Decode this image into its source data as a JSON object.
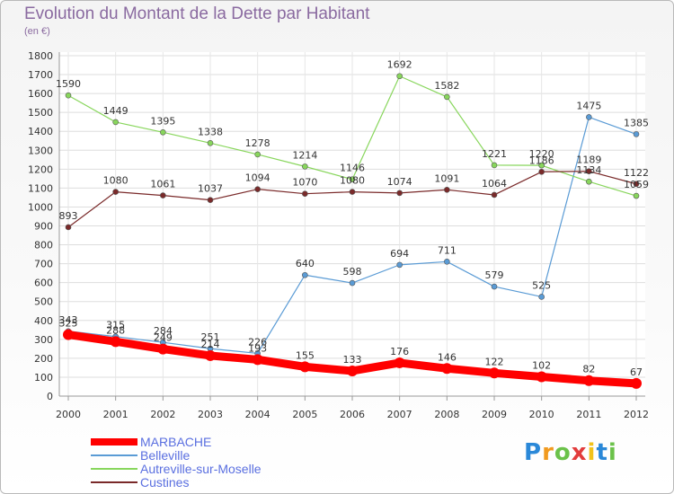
{
  "chart_data": {
    "type": "line",
    "title": "Evolution du Montant de la Dette par Habitant",
    "subtitle": "(en €)",
    "x": [
      "2000",
      "2001",
      "2002",
      "2003",
      "2004",
      "2005",
      "2006",
      "2007",
      "2008",
      "2009",
      "2010",
      "2011",
      "2012"
    ],
    "ylim": [
      0,
      1800
    ],
    "yticks": [
      0,
      100,
      200,
      300,
      400,
      500,
      600,
      700,
      800,
      900,
      1000,
      1100,
      1200,
      1300,
      1400,
      1500,
      1600,
      1700,
      1800
    ],
    "grid": true,
    "legend_position": "bottom-left",
    "series": [
      {
        "name": "MARBACHE",
        "color": "#ff0000",
        "values": [
          325,
          288,
          249,
          214,
          193,
          155,
          133,
          176,
          146,
          122,
          102,
          82,
          67
        ]
      },
      {
        "name": "Belleville",
        "color": "#5a9bd5",
        "values": [
          343,
          315,
          284,
          251,
          226,
          640,
          598,
          694,
          711,
          579,
          525,
          1475,
          1385
        ]
      },
      {
        "name": "Autreville-sur-Moselle",
        "color": "#88d65c",
        "values": [
          1590,
          1449,
          1395,
          1338,
          1278,
          1214,
          1146,
          1692,
          1582,
          1221,
          1220,
          1134,
          1059
        ]
      },
      {
        "name": "Custines",
        "color": "#7a2a2a",
        "values": [
          893,
          1080,
          1061,
          1037,
          1094,
          1070,
          1080,
          1074,
          1091,
          1064,
          1186,
          1189,
          1122
        ]
      }
    ]
  },
  "logo": {
    "letters": [
      "P",
      "r",
      "o",
      "x",
      "i",
      "t",
      "i"
    ],
    "colors": [
      "#2a88d8",
      "#f19a1f",
      "#6bc24a",
      "#e23c3c",
      "#f2c21a",
      "#2a88d8",
      "#6bc24a"
    ]
  }
}
